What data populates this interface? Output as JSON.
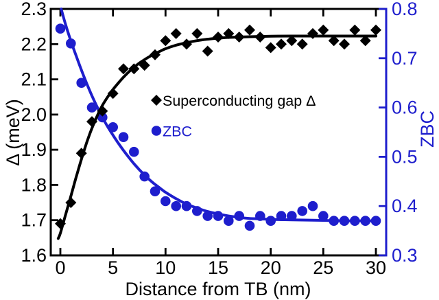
{
  "figure": {
    "background": "#ffffff",
    "black": "#000000",
    "accent_blue": "#1e1ecd"
  },
  "chart_data": {
    "type": "scatter",
    "title": "",
    "xlabel": "Distance from TB (nm)",
    "grid": false,
    "legend_position": "center",
    "x_axis": {
      "ticks": [
        0,
        5,
        10,
        15,
        20,
        25,
        30
      ],
      "tick_labels": [
        "0",
        "5",
        "10",
        "15",
        "20",
        "25",
        "30"
      ],
      "lim": [
        -0.92,
        30.98
      ]
    },
    "left_axis": {
      "label": "Δ (meV)",
      "color": "#000000",
      "ticks": [
        1.6,
        1.7,
        1.8,
        1.9,
        2.0,
        2.1,
        2.2,
        2.3
      ],
      "tick_labels": [
        "1.6",
        "1.7",
        "1.8",
        "1.9",
        "2.0",
        "2.1",
        "2.2",
        "2.3"
      ],
      "lim": [
        1.6,
        2.3
      ]
    },
    "right_axis": {
      "label": "ZBC",
      "color": "#1e1ecd",
      "ticks": [
        0.3,
        0.4,
        0.5,
        0.6,
        0.7,
        0.8
      ],
      "tick_labels": [
        "0.3",
        "0.4",
        "0.5",
        "0.6",
        "0.7",
        "0.8"
      ],
      "lim": [
        0.3,
        0.8
      ]
    },
    "series": [
      {
        "name": "ZBC",
        "axis": "right",
        "marker": "circle",
        "color": "#1e1ecd",
        "x": [
          0,
          1,
          2,
          3,
          4,
          5,
          6,
          7,
          8,
          9,
          10,
          11,
          12,
          13,
          14,
          15,
          16,
          17,
          18,
          19,
          20,
          21,
          22,
          23,
          24,
          25,
          26,
          27,
          28,
          29,
          30
        ],
        "y": [
          0.76,
          0.73,
          0.65,
          0.6,
          0.58,
          0.56,
          0.54,
          0.51,
          0.46,
          0.43,
          0.41,
          0.4,
          0.4,
          0.39,
          0.38,
          0.38,
          0.37,
          0.38,
          0.36,
          0.38,
          0.37,
          0.38,
          0.38,
          0.39,
          0.4,
          0.38,
          0.37,
          0.37,
          0.37,
          0.37,
          0.37
        ],
        "fit_curve": {
          "x": [
            0.08,
            0.5,
            1,
            1.5,
            2,
            2.5,
            3,
            3.5,
            4,
            4.5,
            5,
            5.5,
            6,
            6.5,
            7,
            7.5,
            8,
            8.5,
            9,
            9.5,
            10,
            11,
            12,
            13,
            14,
            15,
            16,
            17,
            18,
            19,
            20,
            22,
            25,
            27,
            30
          ],
          "y": [
            0.8,
            0.768,
            0.735,
            0.705,
            0.676,
            0.649,
            0.624,
            0.601,
            0.58,
            0.561,
            0.544,
            0.528,
            0.513,
            0.499,
            0.486,
            0.474,
            0.463,
            0.453,
            0.444,
            0.436,
            0.428,
            0.415,
            0.404,
            0.396,
            0.389,
            0.384,
            0.38,
            0.377,
            0.375,
            0.374,
            0.373,
            0.372,
            0.371,
            0.37,
            0.37
          ]
        }
      },
      {
        "name": "Superconducting gap Δ",
        "axis": "left",
        "marker": "diamond",
        "color": "#000000",
        "x": [
          0,
          1,
          2,
          3,
          4,
          5,
          6,
          7,
          8,
          9,
          10,
          11,
          12,
          13,
          14,
          15,
          16,
          17,
          18,
          19,
          20,
          21,
          22,
          23,
          24,
          25,
          26,
          27,
          28,
          29,
          30
        ],
        "y": [
          1.69,
          1.75,
          1.89,
          1.98,
          2.01,
          2.06,
          2.13,
          2.13,
          2.14,
          2.17,
          2.21,
          2.23,
          2.2,
          2.23,
          2.18,
          2.22,
          2.23,
          2.22,
          2.24,
          2.22,
          2.19,
          2.2,
          2.21,
          2.2,
          2.23,
          2.24,
          2.21,
          2.2,
          2.24,
          2.21,
          2.24
        ],
        "fit_curve": {
          "x": [
            -0.2,
            0,
            0.5,
            1,
            1.5,
            2,
            2.5,
            3,
            3.5,
            4,
            4.5,
            5,
            5.5,
            6,
            6.5,
            7,
            7.5,
            8,
            8.5,
            9,
            9.5,
            10,
            11,
            12,
            13,
            14,
            15,
            16,
            17,
            18,
            20,
            22,
            25,
            30
          ],
          "y": [
            1.648,
            1.663,
            1.716,
            1.768,
            1.822,
            1.873,
            1.92,
            1.961,
            1.996,
            2.026,
            2.05,
            2.071,
            2.089,
            2.106,
            2.121,
            2.134,
            2.146,
            2.156,
            2.165,
            2.173,
            2.18,
            2.187,
            2.197,
            2.204,
            2.21,
            2.214,
            2.217,
            2.219,
            2.22,
            2.221,
            2.2225,
            2.223,
            2.223,
            2.223
          ]
        }
      }
    ],
    "legend": {
      "items": [
        {
          "label": "Superconducting gap Δ",
          "marker": "diamond",
          "color": "#000000"
        },
        {
          "label": "ZBC",
          "marker": "circle",
          "color": "#1e1ecd"
        }
      ]
    }
  }
}
